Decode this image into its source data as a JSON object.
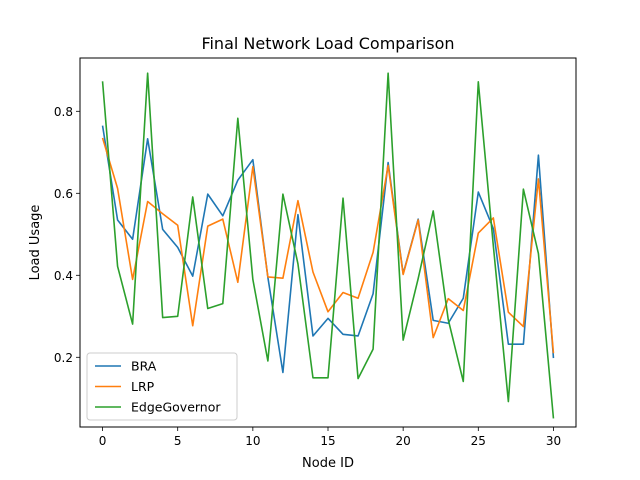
{
  "chart_data": {
    "type": "line",
    "title": "Final Network Load Comparison",
    "xlabel": "Node ID",
    "ylabel": "Load Usage",
    "xlim": [
      -1.5,
      31.5
    ],
    "ylim": [
      0.03,
      0.93
    ],
    "xticks": [
      0,
      5,
      10,
      15,
      20,
      25,
      30
    ],
    "yticks": [
      0.2,
      0.4,
      0.6,
      0.8
    ],
    "ytick_labels": [
      "0.2",
      "0.4",
      "0.6",
      "0.8"
    ],
    "grid": false,
    "legend_position": "lower-left",
    "x": [
      0,
      1,
      2,
      3,
      4,
      5,
      6,
      7,
      8,
      9,
      10,
      11,
      12,
      13,
      14,
      15,
      16,
      17,
      18,
      19,
      20,
      21,
      22,
      23,
      24,
      25,
      26,
      27,
      28,
      29,
      30
    ],
    "series": [
      {
        "name": "BRA",
        "color": "#1f77b4",
        "values": [
          0.765,
          0.535,
          0.488,
          0.733,
          0.512,
          0.468,
          0.398,
          0.598,
          0.545,
          0.632,
          0.682,
          0.395,
          0.163,
          0.548,
          0.252,
          0.295,
          0.256,
          0.252,
          0.355,
          0.675,
          0.404,
          0.537,
          0.29,
          0.283,
          0.344,
          0.603,
          0.514,
          0.232,
          0.232,
          0.693,
          0.198
        ]
      },
      {
        "name": "LRP",
        "color": "#ff7f0e",
        "values": [
          0.735,
          0.612,
          0.39,
          0.58,
          0.55,
          0.522,
          0.277,
          0.52,
          0.537,
          0.383,
          0.665,
          0.396,
          0.393,
          0.582,
          0.408,
          0.311,
          0.358,
          0.344,
          0.456,
          0.668,
          0.402,
          0.535,
          0.248,
          0.343,
          0.314,
          0.503,
          0.54,
          0.31,
          0.275,
          0.635,
          0.21
        ]
      },
      {
        "name": "EdgeGovernor",
        "color": "#2ca02c",
        "values": [
          0.873,
          0.422,
          0.281,
          0.893,
          0.297,
          0.3,
          0.591,
          0.319,
          0.331,
          0.783,
          0.39,
          0.191,
          0.598,
          0.428,
          0.15,
          0.15,
          0.588,
          0.148,
          0.22,
          0.893,
          0.242,
          0.392,
          0.557,
          0.292,
          0.141,
          0.872,
          0.472,
          0.092,
          0.61,
          0.453,
          0.051
        ]
      }
    ]
  }
}
